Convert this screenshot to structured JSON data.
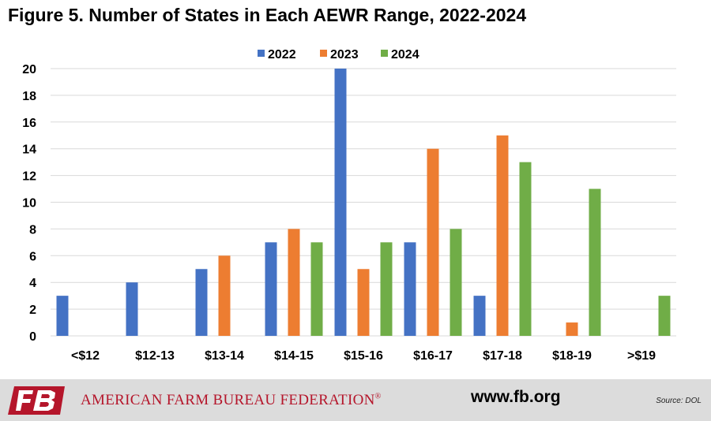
{
  "chart_data": {
    "type": "bar",
    "title": "Figure 5. Number of States in Each AEWR Range, 2022-2024",
    "categories": [
      "<$12",
      "$12-13",
      "$13-14",
      "$14-15",
      "$15-16",
      "$16-17",
      "$17-18",
      "$18-19",
      ">$19"
    ],
    "series": [
      {
        "name": "2022",
        "color": "#4472c4",
        "values": [
          3,
          4,
          5,
          7,
          20,
          7,
          3,
          0,
          0
        ]
      },
      {
        "name": "2023",
        "color": "#ed7d31",
        "values": [
          0,
          0,
          6,
          8,
          5,
          14,
          15,
          1,
          0
        ]
      },
      {
        "name": "2024",
        "color": "#70ad47",
        "values": [
          0,
          0,
          0,
          7,
          7,
          8,
          13,
          11,
          3
        ]
      }
    ],
    "ylim": [
      0,
      20
    ],
    "yticks": [
      0,
      2,
      4,
      6,
      8,
      10,
      12,
      14,
      16,
      18,
      20
    ],
    "xlabel": "",
    "ylabel": "",
    "grid": true,
    "legend_position": "top-center"
  },
  "footer": {
    "organization": "AMERICAN FARM BUREAU FEDERATION",
    "registered_mark": "®",
    "logo_text": "FB",
    "website": "www.fb.org",
    "source": "Source: DOL",
    "brand_color": "#b5162b"
  }
}
